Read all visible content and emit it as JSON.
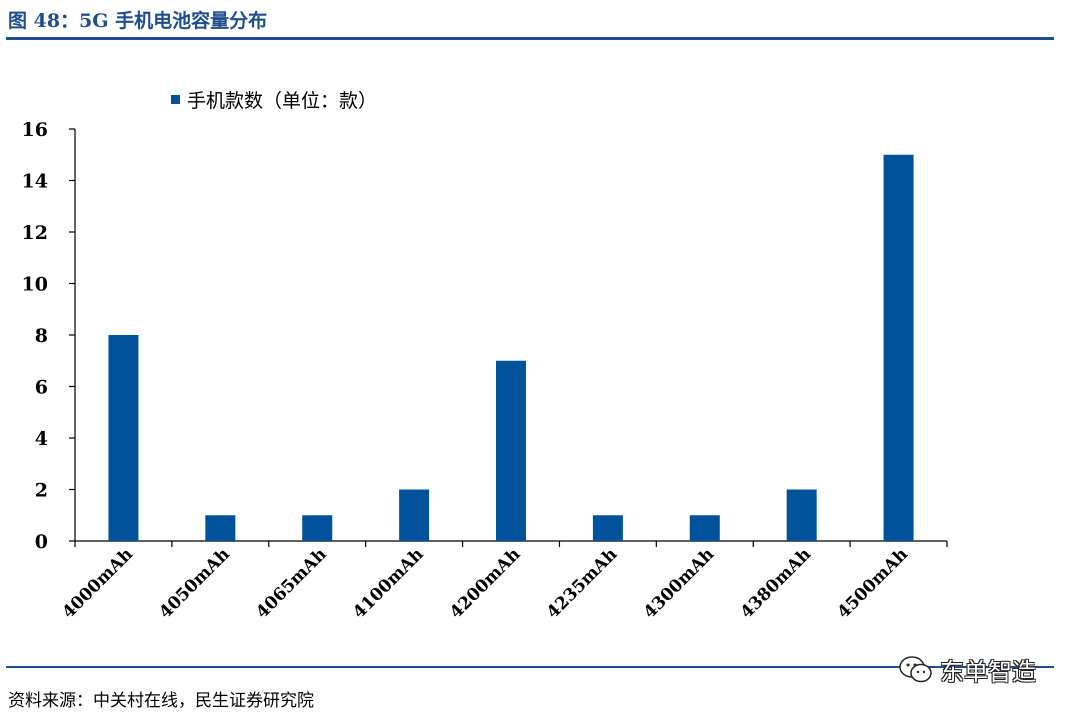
{
  "figure": {
    "title": "图 48：5G 手机电池容量分布",
    "source": "资料来源：中关村在线，民生证券研究院",
    "watermark": "东单智造",
    "watermark_icon": "wechat-icon"
  },
  "chart_data": {
    "type": "bar",
    "categories": [
      "4000mAh",
      "4050mAh",
      "4065mAh",
      "4100mAh",
      "4200mAh",
      "4235mAh",
      "4300mAh",
      "4380mAh",
      "4500mAh"
    ],
    "series": [
      {
        "name": "手机款数（单位：款）",
        "values": [
          8,
          1,
          1,
          2,
          7,
          1,
          1,
          2,
          15
        ],
        "color": "#00529b"
      }
    ],
    "ylim": [
      0,
      16
    ],
    "yticks": [
      0,
      2,
      4,
      6,
      8,
      10,
      12,
      14,
      16
    ],
    "grid": false,
    "legend_position": "top-left"
  }
}
